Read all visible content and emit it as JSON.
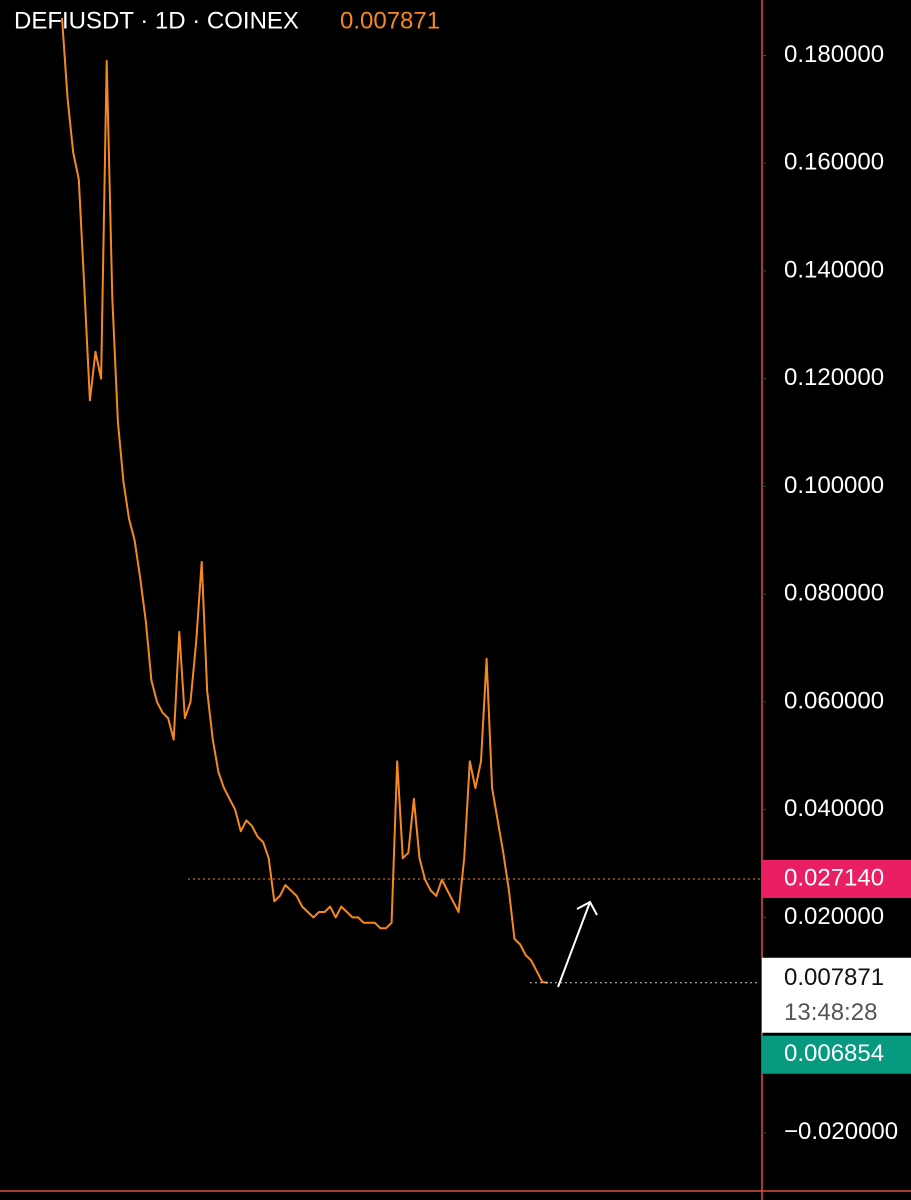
{
  "chart_data": {
    "type": "line",
    "title": "DEFIUSDT · 1D · COINEX",
    "last_price": {
      "value": 0.007871,
      "label": "0.007871"
    },
    "countdown": "13:48:28",
    "color": "#f5891f",
    "values": [
      0.187,
      0.172,
      0.162,
      0.157,
      0.137,
      0.116,
      0.125,
      0.12,
      0.179,
      0.135,
      0.112,
      0.101,
      0.094,
      0.09,
      0.083,
      0.075,
      0.064,
      0.06,
      0.058,
      0.057,
      0.053,
      0.073,
      0.057,
      0.06,
      0.071,
      0.086,
      0.062,
      0.053,
      0.047,
      0.044,
      0.042,
      0.04,
      0.036,
      0.038,
      0.037,
      0.035,
      0.034,
      0.031,
      0.023,
      0.024,
      0.026,
      0.025,
      0.024,
      0.022,
      0.021,
      0.02,
      0.021,
      0.021,
      0.022,
      0.02,
      0.022,
      0.021,
      0.02,
      0.02,
      0.019,
      0.019,
      0.019,
      0.018,
      0.018,
      0.019,
      0.049,
      0.031,
      0.032,
      0.042,
      0.031,
      0.027,
      0.025,
      0.024,
      0.027,
      0.025,
      0.023,
      0.021,
      0.031,
      0.049,
      0.044,
      0.049,
      0.068,
      0.044,
      0.038,
      0.032,
      0.025,
      0.016,
      0.015,
      0.013,
      0.012,
      0.01,
      0.008,
      0.007871
    ],
    "ylim": [
      -0.0306,
      0.1903
    ],
    "yticks": [
      {
        "value": 0.18,
        "label": "0.180000"
      },
      {
        "value": 0.16,
        "label": "0.160000"
      },
      {
        "value": 0.14,
        "label": "0.140000"
      },
      {
        "value": 0.12,
        "label": "0.120000"
      },
      {
        "value": 0.1,
        "label": "0.100000"
      },
      {
        "value": 0.08,
        "label": "0.080000"
      },
      {
        "value": 0.06,
        "label": "0.060000"
      },
      {
        "value": 0.04,
        "label": "0.040000"
      },
      {
        "value": 0.02,
        "label": "0.020000"
      },
      {
        "value": -0.02,
        "label": "−0.020000"
      }
    ],
    "price_lines": [
      {
        "value": 0.02714,
        "label": "0.027140",
        "color": "#e91e63",
        "line_color": "#f5891f"
      },
      {
        "value": 0.006854,
        "label": "0.006854",
        "color": "#089981"
      }
    ]
  }
}
